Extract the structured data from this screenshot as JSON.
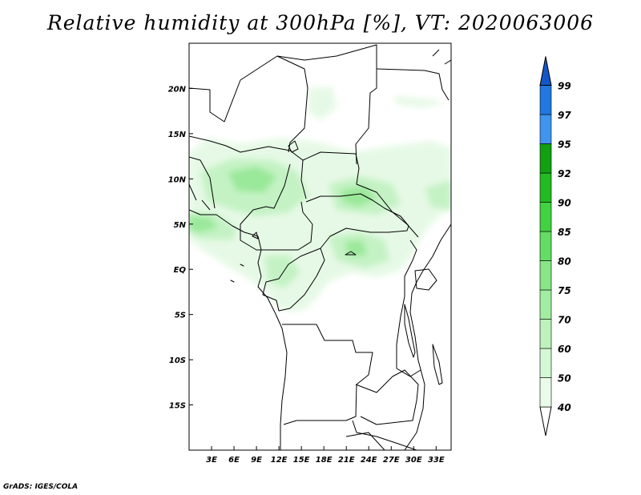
{
  "title": "Relative humidity at 300hPa [%], VT: 2020063006",
  "credit": "GrADS: IGES/COLA",
  "map": {
    "lon_range": [
      0,
      35
    ],
    "lat_range": [
      -20,
      25
    ],
    "lon_ticks": [
      "3E",
      "6E",
      "9E",
      "12E",
      "15E",
      "18E",
      "21E",
      "24E",
      "27E",
      "30E",
      "33E"
    ],
    "lat_ticks": [
      "20N",
      "15N",
      "10N",
      "5N",
      "EQ",
      "5S",
      "10S",
      "15S"
    ]
  },
  "colorbar": {
    "levels": [
      "40",
      "50",
      "60",
      "70",
      "75",
      "80",
      "85",
      "90",
      "92",
      "95",
      "97",
      "99"
    ],
    "colors": [
      "#ebfbeb",
      "#d4f7d4",
      "#bdf2bd",
      "#a2eda2",
      "#88e688",
      "#63dd63",
      "#41d241",
      "#22bb22",
      "#10a010",
      "#3f95ee",
      "#2277e0",
      "#1456c6"
    ]
  },
  "legend_key": {
    "colors": {
      "light": "#e6f9e6",
      "mid": "#c4f2c4",
      "dark": "#9ae89a"
    }
  }
}
